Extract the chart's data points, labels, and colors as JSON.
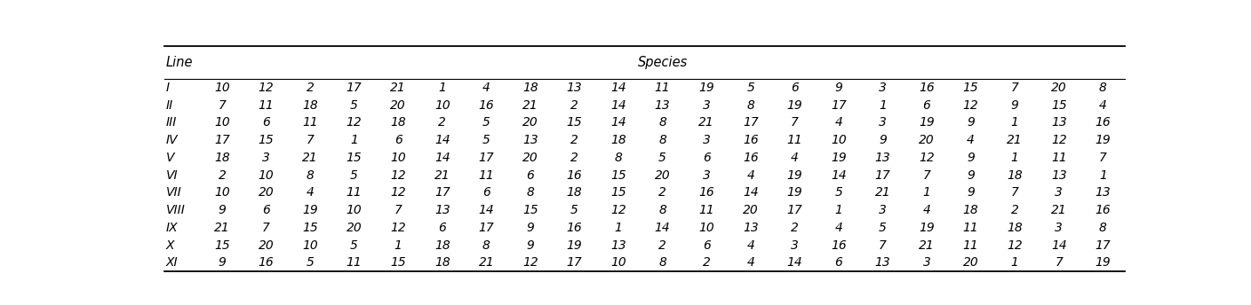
{
  "title_left": "Line",
  "title_right": "Species",
  "rows": [
    [
      "I",
      "10",
      "12",
      "2",
      "17",
      "21",
      "1",
      "4",
      "18",
      "13",
      "14",
      "11",
      "19",
      "5",
      "6",
      "9",
      "3",
      "16",
      "15",
      "7",
      "20",
      "8"
    ],
    [
      "II",
      "7",
      "11",
      "18",
      "5",
      "20",
      "10",
      "16",
      "21",
      "2",
      "14",
      "13",
      "3",
      "8",
      "19",
      "17",
      "1",
      "6",
      "12",
      "9",
      "15",
      "4"
    ],
    [
      "III",
      "10",
      "6",
      "11",
      "12",
      "18",
      "2",
      "5",
      "20",
      "15",
      "14",
      "8",
      "21",
      "17",
      "7",
      "4",
      "3",
      "19",
      "9",
      "1",
      "13",
      "16"
    ],
    [
      "IV",
      "17",
      "15",
      "7",
      "1",
      "6",
      "14",
      "5",
      "13",
      "2",
      "18",
      "8",
      "3",
      "16",
      "11",
      "10",
      "9",
      "20",
      "4",
      "21",
      "12",
      "19"
    ],
    [
      "V",
      "18",
      "3",
      "21",
      "15",
      "10",
      "14",
      "17",
      "20",
      "2",
      "8",
      "5",
      "6",
      "16",
      "4",
      "19",
      "13",
      "12",
      "9",
      "1",
      "11",
      "7"
    ],
    [
      "VI",
      "2",
      "10",
      "8",
      "5",
      "12",
      "21",
      "11",
      "6",
      "16",
      "15",
      "20",
      "3",
      "4",
      "19",
      "14",
      "17",
      "7",
      "9",
      "18",
      "13",
      "1"
    ],
    [
      "VII",
      "10",
      "20",
      "4",
      "11",
      "12",
      "17",
      "6",
      "8",
      "18",
      "15",
      "2",
      "16",
      "14",
      "19",
      "5",
      "21",
      "1",
      "9",
      "7",
      "3",
      "13"
    ],
    [
      "VIII",
      "9",
      "6",
      "19",
      "10",
      "7",
      "13",
      "14",
      "15",
      "5",
      "12",
      "8",
      "11",
      "20",
      "17",
      "1",
      "3",
      "4",
      "18",
      "2",
      "21",
      "16"
    ],
    [
      "IX",
      "21",
      "7",
      "15",
      "20",
      "12",
      "6",
      "17",
      "9",
      "16",
      "1",
      "14",
      "10",
      "13",
      "2",
      "4",
      "5",
      "19",
      "11",
      "18",
      "3",
      "8"
    ],
    [
      "X",
      "15",
      "20",
      "10",
      "5",
      "1",
      "18",
      "8",
      "9",
      "19",
      "13",
      "2",
      "6",
      "4",
      "3",
      "16",
      "7",
      "21",
      "11",
      "12",
      "14",
      "17"
    ],
    [
      "XI",
      "9",
      "16",
      "5",
      "11",
      "15",
      "18",
      "21",
      "12",
      "17",
      "10",
      "8",
      "2",
      "4",
      "14",
      "6",
      "13",
      "3",
      "20",
      "1",
      "7",
      "19"
    ]
  ],
  "bg_color": "#ffffff",
  "text_color": "#000000",
  "font_size": 10.0,
  "header_font_size": 10.5
}
